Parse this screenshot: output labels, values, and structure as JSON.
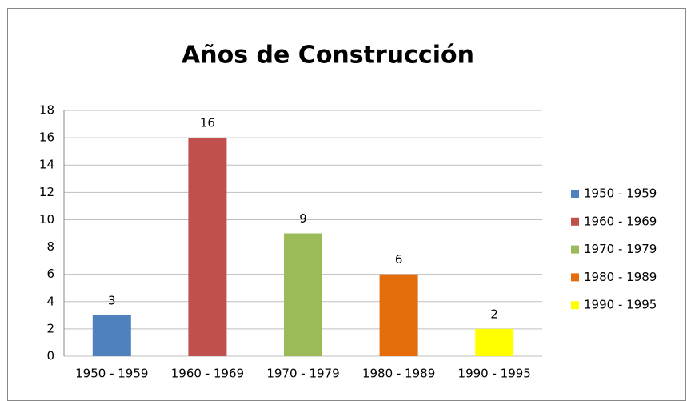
{
  "chart_data": {
    "type": "bar",
    "title": "Años de Construcción",
    "categories": [
      "1950 - 1959",
      "1960 - 1969",
      "1970 - 1979",
      "1980 - 1989",
      "1990 - 1995"
    ],
    "values": [
      3,
      16,
      9,
      6,
      2
    ],
    "colors": [
      "#4f81bd",
      "#c0504d",
      "#9bbb59",
      "#e46c0a",
      "#ffff00"
    ],
    "ylim": [
      0,
      18
    ],
    "yticks": [
      0,
      2,
      4,
      6,
      8,
      10,
      12,
      14,
      16,
      18
    ],
    "grid": true,
    "legend": "right"
  }
}
